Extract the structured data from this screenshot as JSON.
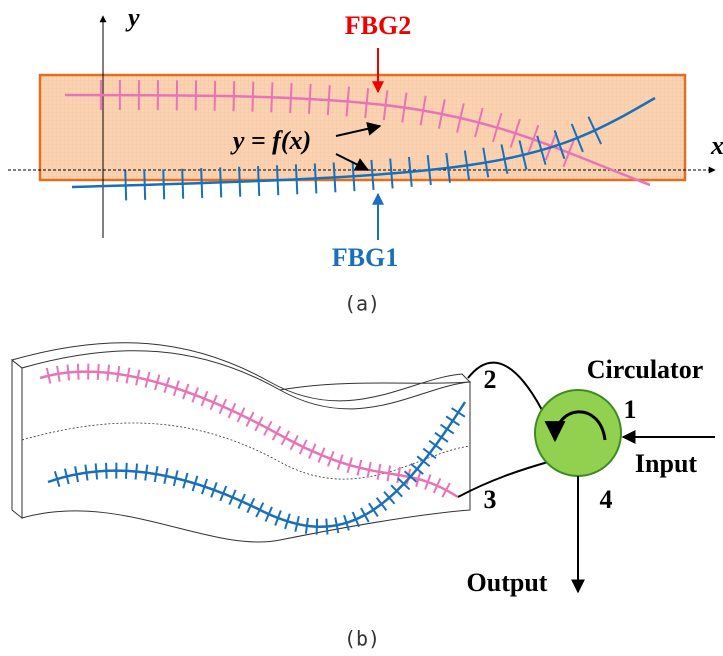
{
  "panel_a": {
    "y_axis": "y",
    "x_axis": "x",
    "fbg2": "FBG2",
    "fbg1": "FBG1",
    "equation": "y = f(x)",
    "caption": "(a)"
  },
  "panel_b": {
    "circulator": "Circulator",
    "port_1": "1",
    "port_2": "2",
    "port_3": "3",
    "port_4": "4",
    "input": "Input",
    "output": "Output",
    "caption": "(b)"
  }
}
